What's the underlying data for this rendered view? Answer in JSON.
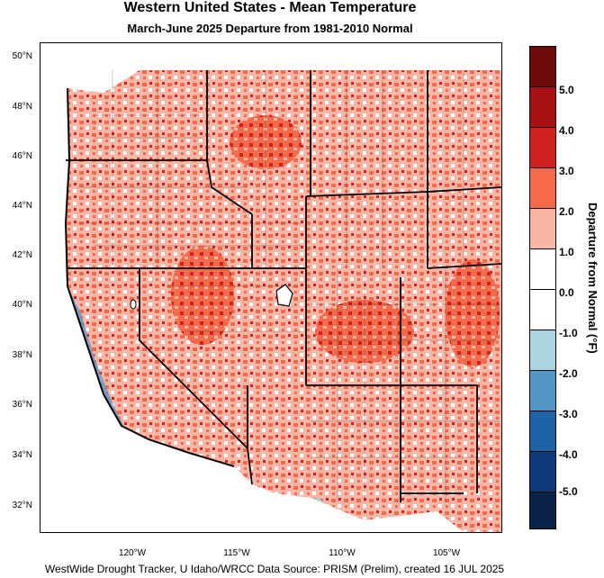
{
  "header": {
    "title": "Western United States - Mean Temperature",
    "subtitle": "March-June 2025  Departure from 1981-2010 Normal"
  },
  "axes": {
    "latitude_labels": [
      "50°N",
      "48°N",
      "46°N",
      "44°N",
      "42°N",
      "40°N",
      "38°N",
      "36°N",
      "34°N",
      "32°N"
    ],
    "longitude_labels": [
      "120°W",
      "115°W",
      "110°W",
      "105°W"
    ]
  },
  "legend": {
    "title": "Departure from Normal (°F)",
    "labels": [
      "5.0",
      "4.0",
      "3.0",
      "2.0",
      "1.0",
      "0.0",
      "-1.0",
      "-2.0",
      "-3.0",
      "-4.0",
      "-5.0"
    ],
    "colors": [
      "#6e0b0b",
      "#a80f12",
      "#d0231f",
      "#f46a4a",
      "#f9b5a5",
      "#ffffff",
      "#ffffff",
      "#a9d5e0",
      "#5296c7",
      "#1f62a8",
      "#0d3b7a",
      "#082346"
    ]
  },
  "footer": {
    "credit": "WestWide Drought Tracker, U Idaho/WRCC Data Source: PRISM (Prelim), created 16 JUL 2025"
  }
}
